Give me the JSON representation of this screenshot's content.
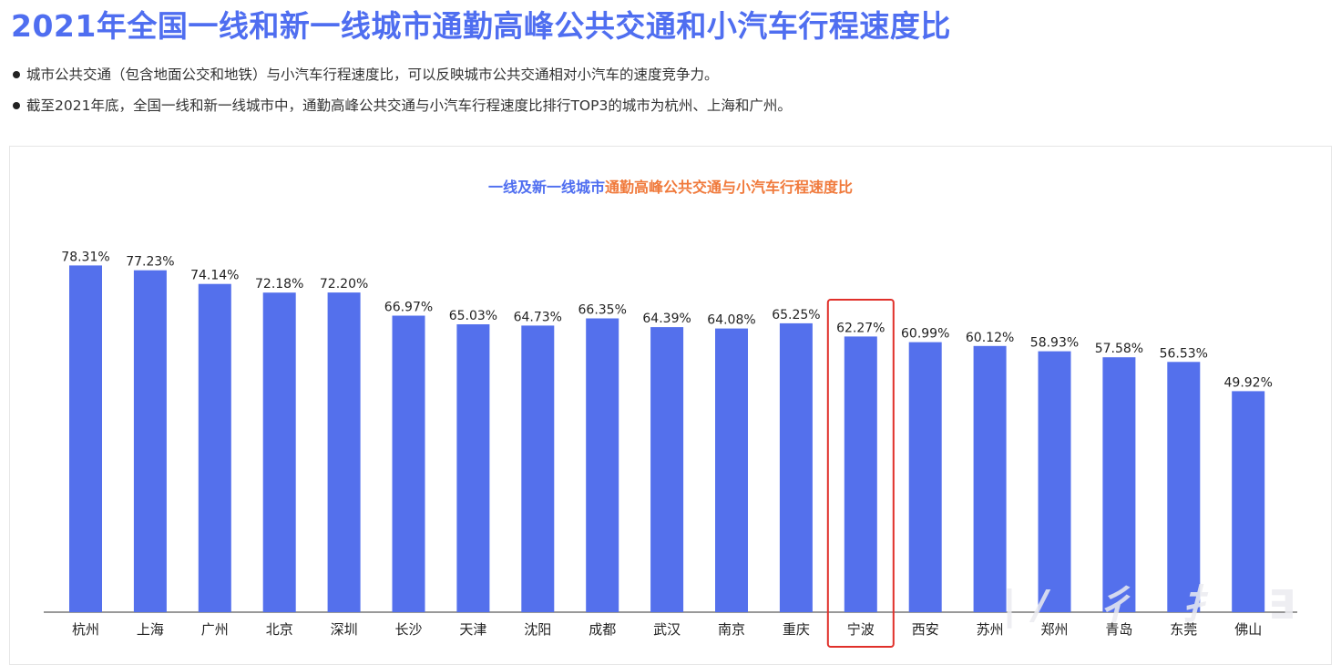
{
  "page": {
    "title": "2021年全国一线和新一线城市通勤高峰公共交通和小汽车行程速度比",
    "bullets": [
      "城市公共交通（包含地面公交和地铁）与小汽车行程速度比，可以反映城市公共交通相对小汽车的速度竞争力。",
      "截至2021年底，全国一线和新一线城市中，通勤高峰公共交通与小汽车行程速度比排行TOP3的城市为杭州、上海和广州。"
    ]
  },
  "colors": {
    "bar": "#5470ec",
    "title_blue": "#4f6ef0",
    "title_orange": "#f07a3c",
    "highlight_box": "#e0302a"
  },
  "chart_data": {
    "type": "bar",
    "title_part1": "一线及新一线城市",
    "title_part2": "通勤高峰公共交通与小汽车行程速度比",
    "categories": [
      "杭州",
      "上海",
      "广州",
      "北京",
      "深圳",
      "长沙",
      "天津",
      "沈阳",
      "成都",
      "武汉",
      "南京",
      "重庆",
      "宁波",
      "西安",
      "苏州",
      "郑州",
      "青岛",
      "东莞",
      "佛山"
    ],
    "values": [
      78.31,
      77.23,
      74.14,
      72.18,
      72.2,
      66.97,
      65.03,
      64.73,
      66.35,
      64.39,
      64.08,
      65.25,
      62.27,
      60.99,
      60.12,
      58.93,
      57.58,
      56.53,
      49.92
    ],
    "value_labels": [
      "78.31%",
      "77.23%",
      "74.14%",
      "72.18%",
      "72.20%",
      "66.97%",
      "65.03%",
      "64.73%",
      "66.35%",
      "64.39%",
      "64.08%",
      "65.25%",
      "62.27%",
      "60.99%",
      "60.12%",
      "58.93%",
      "57.58%",
      "56.53%",
      "49.92%"
    ],
    "highlighted_category": "宁波",
    "grid": false,
    "legend": "none"
  }
}
